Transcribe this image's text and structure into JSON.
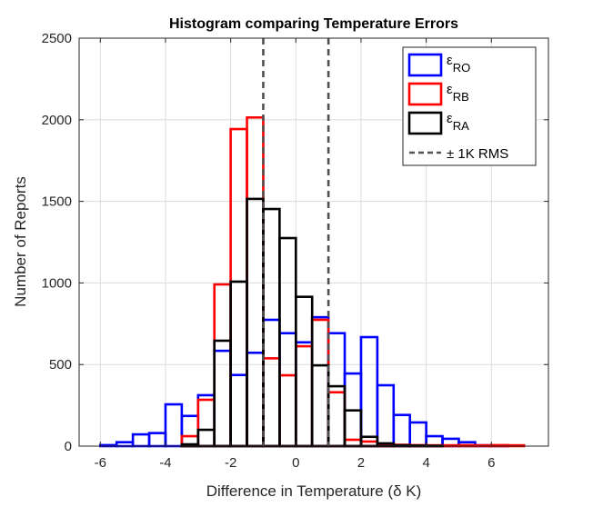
{
  "chart_data": {
    "type": "bar",
    "subtype": "histogram-stairs",
    "title": "Histogram comparing Temperature Errors",
    "xlabel": "Difference in Temperature (δ K)",
    "ylabel": "Number of Reports",
    "xlim": [
      -6.65,
      7.75
    ],
    "ylim": [
      0,
      2500
    ],
    "xticks": [
      -6,
      -4,
      -2,
      0,
      2,
      4,
      6
    ],
    "yticks": [
      0,
      500,
      1000,
      1500,
      2000,
      2500
    ],
    "grid": true,
    "legend_position": "top-right",
    "bin_width": 0.5,
    "series": [
      {
        "name": "εRO",
        "label_main": "ε",
        "label_sub": "RO",
        "color": "#0000ff",
        "bin_start": -6,
        "values": [
          6,
          24,
          72,
          80,
          256,
          185,
          312,
          584,
          436,
          572,
          774,
          692,
          636,
          790,
          692,
          445,
          668,
          373,
          191,
          145,
          61,
          45,
          24,
          5,
          2,
          0
        ]
      },
      {
        "name": "εRB",
        "label_main": "ε",
        "label_sub": "RB",
        "color": "#ff0000",
        "bin_start": -3.5,
        "values": [
          61,
          284,
          991,
          1943,
          2014,
          538,
          434,
          612,
          774,
          330,
          39,
          28,
          15,
          8,
          6,
          5,
          5,
          6,
          5,
          6,
          5
        ]
      },
      {
        "name": "εRA",
        "label_main": "ε",
        "label_sub": "RA",
        "color": "#000000",
        "bin_start": -3.5,
        "values": [
          11,
          100,
          646,
          1008,
          1515,
          1453,
          1275,
          915,
          495,
          367,
          219,
          57,
          17,
          5,
          3,
          2
        ]
      }
    ],
    "reference_lines": {
      "name": "± 1K RMS",
      "x": [
        -1,
        1
      ],
      "color": "#505050",
      "style": "dashed"
    }
  }
}
